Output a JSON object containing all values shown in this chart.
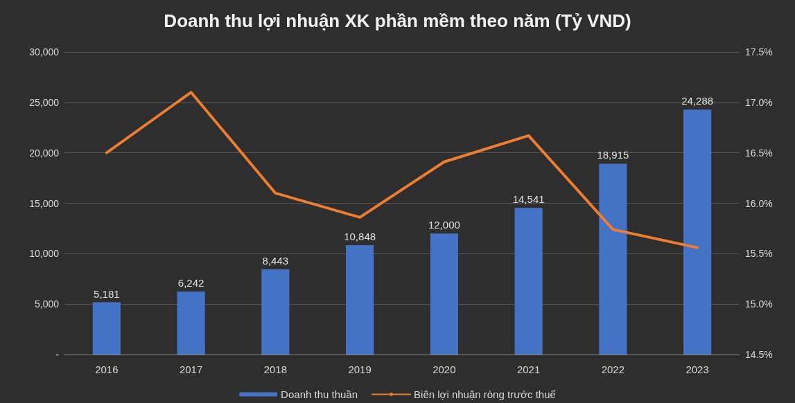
{
  "chart_data": {
    "type": "bar",
    "title": "Doanh thu lợi nhuận XK phần mềm theo năm (Tỷ VND)",
    "categories": [
      "2016",
      "2017",
      "2018",
      "2019",
      "2020",
      "2021",
      "2022",
      "2023"
    ],
    "series": [
      {
        "name": "Doanh thu thuần",
        "color": "#4472c4",
        "values": [
          5181,
          6242,
          8443,
          10848,
          12000,
          14541,
          18915,
          24288
        ],
        "value_labels": [
          "5,181",
          "6,242",
          "8,443",
          "10,848",
          "12,000",
          "14,541",
          "18,915",
          "24,288"
        ]
      },
      {
        "name": "Biên lợi nhuận ròng trước thuế",
        "type": "line",
        "axis": "y2",
        "color": "#ed7d31",
        "values": [
          16.5,
          17.1,
          16.1,
          15.86,
          16.41,
          16.67,
          15.74,
          15.56
        ]
      }
    ],
    "ylim": [
      0,
      30000
    ],
    "yticks": [
      {
        "value": 0,
        "label": "-"
      },
      {
        "value": 5000,
        "label": "5,000"
      },
      {
        "value": 10000,
        "label": "10,000"
      },
      {
        "value": 15000,
        "label": "15,000"
      },
      {
        "value": 20000,
        "label": "20,000"
      },
      {
        "value": 25000,
        "label": "25,000"
      },
      {
        "value": 30000,
        "label": "30,000"
      }
    ],
    "y2lim": [
      14.5,
      17.5
    ],
    "y2ticks": [
      {
        "value": 14.5,
        "label": "14.5%"
      },
      {
        "value": 15,
        "label": "15.0%"
      },
      {
        "value": 15.5,
        "label": "15.5%"
      },
      {
        "value": 16,
        "label": "16.0%"
      },
      {
        "value": 16.5,
        "label": "16.5%"
      },
      {
        "value": 17,
        "label": "17.0%"
      },
      {
        "value": 17.5,
        "label": "17.5%"
      }
    ],
    "grid": "y",
    "legend": "bottom",
    "marker": "none",
    "line_style": "solid"
  }
}
